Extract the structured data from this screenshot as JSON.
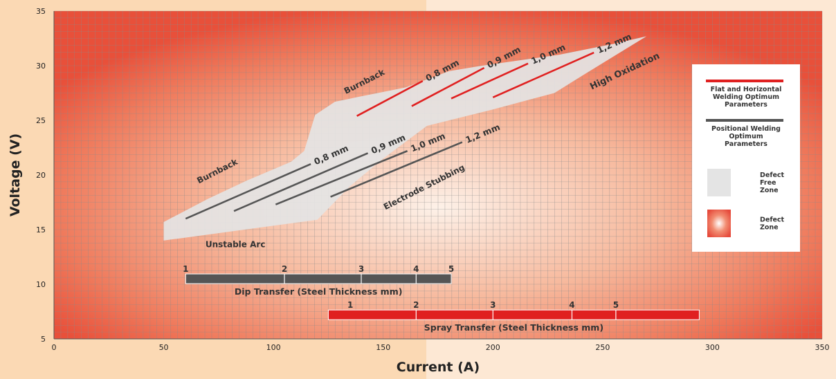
{
  "chart_data": {
    "type": "line",
    "xlabel": "Current (A)",
    "ylabel": "Voltage (V)",
    "xlim": [
      0,
      350
    ],
    "ylim": [
      5,
      35
    ],
    "xticks": [
      0,
      50,
      100,
      150,
      200,
      250,
      300,
      350
    ],
    "yticks": [
      5,
      10,
      15,
      20,
      25,
      30,
      35
    ],
    "grid": true,
    "defect_free_zone": [
      [
        50,
        15.7
      ],
      [
        50,
        14
      ],
      [
        120,
        15.9
      ],
      [
        135,
        19
      ],
      [
        150,
        21.5
      ],
      [
        170,
        24.5
      ],
      [
        200,
        26
      ],
      [
        228,
        27.5
      ],
      [
        240,
        29
      ],
      [
        270,
        32.7
      ],
      [
        255,
        32
      ],
      [
        230,
        31
      ],
      [
        195,
        30
      ],
      [
        180,
        29.5
      ],
      [
        160,
        28
      ],
      [
        140,
        27.2
      ],
      [
        128,
        26.7
      ],
      [
        119,
        25.5
      ],
      [
        114,
        22.2
      ],
      [
        108,
        21.2
      ],
      [
        88,
        19.5
      ],
      [
        70,
        17.8
      ]
    ],
    "series": [
      {
        "name": "0,8 mm",
        "group": "flat",
        "x": [
          138,
          168
        ],
        "y": [
          25.4,
          28.6
        ]
      },
      {
        "name": "0,9 mm",
        "group": "flat",
        "x": [
          163,
          196
        ],
        "y": [
          26.3,
          29.8
        ]
      },
      {
        "name": "1,0 mm",
        "group": "flat",
        "x": [
          181,
          216
        ],
        "y": [
          27.0,
          30.2
        ]
      },
      {
        "name": "1,2 mm",
        "group": "flat",
        "x": [
          200,
          246
        ],
        "y": [
          27.1,
          31.2
        ]
      },
      {
        "name": "0,8 mm",
        "group": "positional",
        "x": [
          60,
          117
        ],
        "y": [
          16.0,
          21.0
        ]
      },
      {
        "name": "0,9 mm",
        "group": "positional",
        "x": [
          82,
          143
        ],
        "y": [
          16.7,
          22.0
        ]
      },
      {
        "name": "1,0 mm",
        "group": "positional",
        "x": [
          101,
          161
        ],
        "y": [
          17.3,
          22.2
        ]
      },
      {
        "name": "1,2 mm",
        "group": "positional",
        "x": [
          126,
          186
        ],
        "y": [
          18.0,
          23.0
        ]
      }
    ],
    "annotations": [
      {
        "text": "Burnback",
        "x": 66,
        "y": 19.2,
        "angle": -27,
        "size": 12
      },
      {
        "text": "Burnback",
        "x": 133,
        "y": 27.4,
        "angle": -27,
        "size": 12
      },
      {
        "text": "Electrode Stubbing",
        "x": 151,
        "y": 16.8,
        "angle": -27,
        "size": 12
      },
      {
        "text": "High Oxidation",
        "x": 245,
        "y": 27.8,
        "angle": -25,
        "size": 13
      },
      {
        "text": "Unstable Arc",
        "x": 69,
        "y": 13.4,
        "angle": 0,
        "size": 12
      }
    ],
    "transfer_bars": [
      {
        "label": "Dip Transfer (Steel Thickness mm)",
        "color": "#555555",
        "x_start": 60,
        "x_end": 181,
        "y": 10.5,
        "ticks": [
          {
            "label": "1",
            "x": 60
          },
          {
            "label": "2",
            "x": 105
          },
          {
            "label": "3",
            "x": 140
          },
          {
            "label": "4",
            "x": 165
          },
          {
            "label": "5",
            "x": 181
          }
        ]
      },
      {
        "label": "Spray Transfer (Steel Thickness mm)",
        "color": "#e02020",
        "x_start": 125,
        "x_end": 294,
        "y": 7.2,
        "ticks": [
          {
            "label": "1",
            "x": 135
          },
          {
            "label": "2",
            "x": 165
          },
          {
            "label": "3",
            "x": 200
          },
          {
            "label": "4",
            "x": 236
          },
          {
            "label": "5",
            "x": 256
          }
        ]
      }
    ],
    "legend": {
      "placement": "right",
      "items": [
        {
          "label": [
            "Flat and Horizontal",
            "Welding Optimum",
            "Parameters"
          ],
          "kind": "line",
          "color": "#e02020"
        },
        {
          "label": [
            "Positional Welding",
            "Optimum",
            "Parameters"
          ],
          "kind": "line",
          "color": "#555555"
        },
        {
          "label": [
            "Defect",
            "Free",
            "Zone"
          ],
          "kind": "swatch",
          "color": "#e4e4e4"
        },
        {
          "label": [
            "Defect",
            "Zone"
          ],
          "kind": "swatch-radial",
          "color": "#e64b3c"
        }
      ]
    },
    "colors": {
      "flat": "#e02020",
      "positional": "#555555",
      "defect_free": "#e4e4e4",
      "defect": "#e8503a",
      "grid": "#8a8a8a"
    }
  }
}
